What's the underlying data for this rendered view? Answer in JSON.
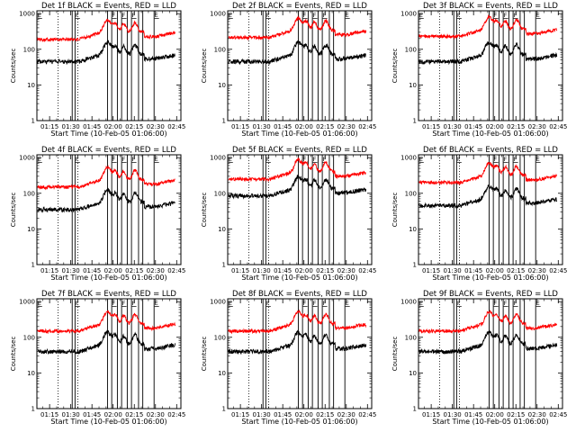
{
  "panels": [
    {
      "title": "Det 1f BLACK = Events, RED = LLD"
    },
    {
      "title": "Det 2f BLACK = Events, RED = LLD"
    },
    {
      "title": "Det 3f BLACK = Events, RED = LLD"
    },
    {
      "title": "Det 4f BLACK = Events, RED = LLD"
    },
    {
      "title": "Det 5f BLACK = Events, RED = LLD"
    },
    {
      "title": "Det 6f BLACK = Events, RED = LLD"
    },
    {
      "title": "Det 7f BLACK = Events, RED = LLD"
    },
    {
      "title": "Det 8f BLACK = Events, RED = LLD"
    },
    {
      "title": "Det 9f BLACK = Events, RED = LLD"
    }
  ],
  "colors": {
    "events": "#000000",
    "lld": "#ff0000",
    "axes": "#000000",
    "background": "#ffffff"
  },
  "chart_data": {
    "type": "line",
    "layout": "3x3 grid",
    "xlabel": "Start Time (10-Feb-05 01:06:00)",
    "ylabel": "Counts/sec",
    "x_ticks": [
      "01:15",
      "01:30",
      "01:45",
      "02:00",
      "02:15",
      "02:30",
      "02:45"
    ],
    "x_tick_minutes": [
      15,
      30,
      45,
      60,
      75,
      90,
      105
    ],
    "xlim_minutes": [
      6,
      108
    ],
    "y_ticks": [
      "1",
      "10",
      "100",
      "1000"
    ],
    "yscale": "log",
    "ylim": [
      1,
      1200
    ],
    "dotted_lines_minutes": [
      21,
      35
    ],
    "interval_lines_minutes": [
      31,
      33,
      56,
      59,
      63,
      66,
      70,
      73,
      78,
      81,
      89
    ],
    "interval_labels": [
      {
        "text": "E",
        "minute": 6.5
      },
      {
        "text": "F",
        "minute": 33.3
      },
      {
        "text": "F",
        "minute": 59.3
      },
      {
        "text": "F",
        "minute": 66.3
      },
      {
        "text": "F",
        "minute": 73.3
      },
      {
        "text": "E",
        "minute": 89.3
      }
    ],
    "series": [
      {
        "name": "BLACK = Events",
        "color": "#000000"
      },
      {
        "name": "RED = LLD",
        "color": "#ff0000"
      }
    ],
    "series_levels_per_panel": [
      {
        "events_level": 45,
        "lld_level": 190
      },
      {
        "events_level": 45,
        "lld_level": 215
      },
      {
        "events_level": 45,
        "lld_level": 230
      },
      {
        "events_level": 35,
        "lld_level": 150
      },
      {
        "events_level": 85,
        "lld_level": 250
      },
      {
        "events_level": 45,
        "lld_level": 200
      },
      {
        "events_level": 40,
        "lld_level": 150
      },
      {
        "events_level": 40,
        "lld_level": 150
      },
      {
        "events_level": 40,
        "lld_level": 150
      }
    ]
  }
}
